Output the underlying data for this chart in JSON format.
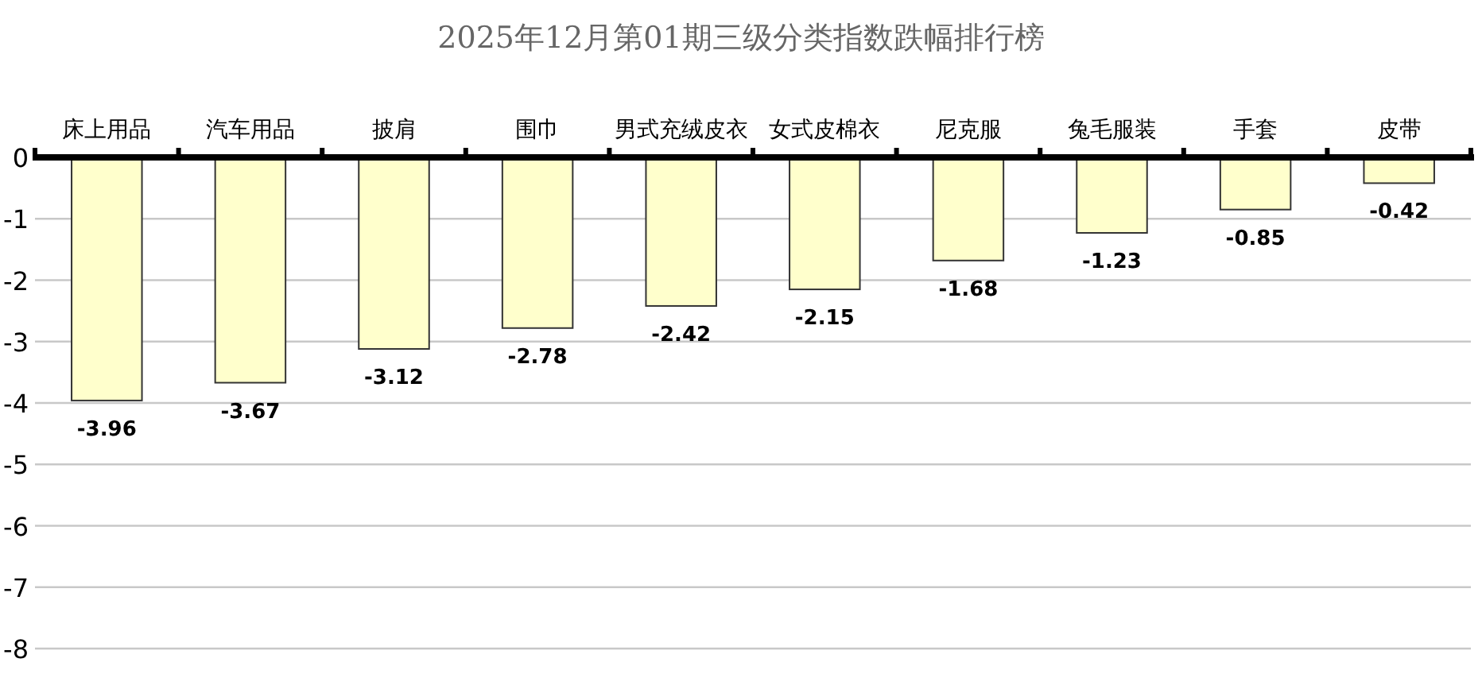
{
  "chart_data": {
    "type": "bar",
    "title": "2025年12月第01期三级分类指数跌幅排行榜",
    "categories": [
      "床上用品",
      "汽车用品",
      "披肩",
      "围巾",
      "男式充绒皮衣",
      "女式皮棉衣",
      "尼克服",
      "兔毛服装",
      "手套",
      "皮带"
    ],
    "values": [
      -3.96,
      -3.67,
      -3.12,
      -2.78,
      -2.42,
      -2.15,
      -1.68,
      -1.23,
      -0.85,
      -0.42
    ],
    "color": "#ffffcc",
    "ylim": [
      -8,
      0
    ],
    "yticks": [
      0,
      -1,
      -2,
      -3,
      -4,
      -5,
      -6,
      -7,
      -8
    ],
    "grid": "y",
    "data_labels": true
  }
}
